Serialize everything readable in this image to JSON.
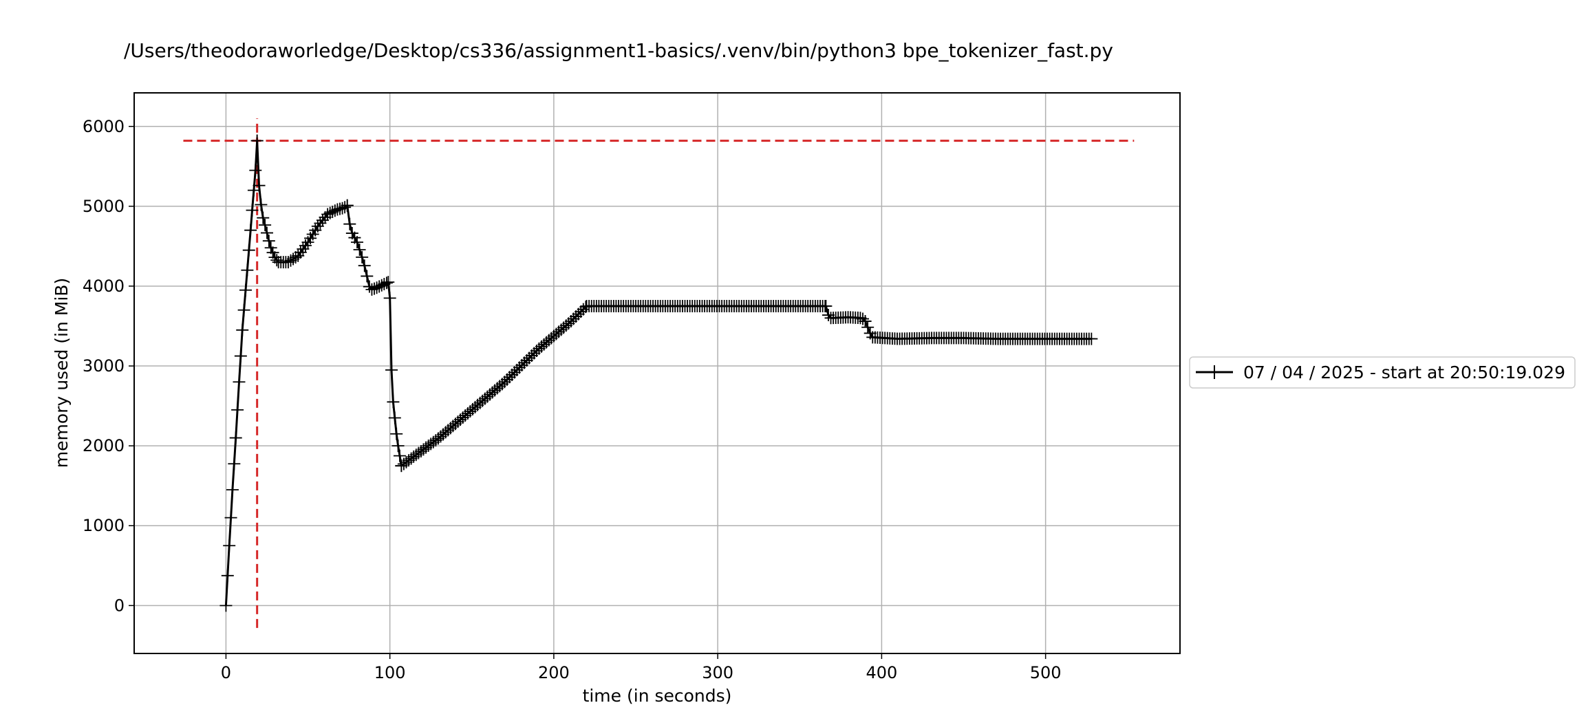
{
  "chart_data": {
    "type": "line",
    "title": "/Users/theodoraworledge/Desktop/cs336/assignment1-basics/.venv/bin/python3 bpe_tokenizer_fast.py",
    "xlabel": "time (in seconds)",
    "ylabel": "memory used (in MiB)",
    "xlim": [
      -56,
      582
    ],
    "ylim": [
      -600,
      6420
    ],
    "xticks": [
      0,
      100,
      200,
      300,
      400,
      500
    ],
    "yticks": [
      0,
      1000,
      2000,
      3000,
      4000,
      5000,
      6000
    ],
    "grid": true,
    "legend_position": "right-outside",
    "colors": {
      "series": "#000000",
      "peak": "#d62728",
      "grid": "#b0b0b0"
    },
    "peak": {
      "time": 19,
      "memory": 5820,
      "y_span": [
        -280,
        6100
      ],
      "x_span": [
        -26,
        554
      ]
    },
    "series": [
      {
        "name": "07 / 04 / 2025 - start at 20:50:19.029",
        "segments": [
          {
            "from": [
              0,
              0
            ],
            "to": [
              19,
              5820
            ],
            "step": 1,
            "points": [
              [
                0,
                0
              ],
              [
                2,
                750
              ],
              [
                4,
                1450
              ],
              [
                6,
                2100
              ],
              [
                8,
                2800
              ],
              [
                10,
                3450
              ],
              [
                12,
                3950
              ],
              [
                14,
                4450
              ],
              [
                16,
                4950
              ],
              [
                18,
                5450
              ],
              [
                19,
                5820
              ]
            ]
          },
          {
            "from": [
              19,
              5820
            ],
            "to": [
              32,
              4300
            ],
            "step": 1.2,
            "points": [
              [
                19,
                5820
              ],
              [
                20,
                5300
              ],
              [
                22,
                4900
              ],
              [
                24,
                4750
              ],
              [
                27,
                4500
              ],
              [
                30,
                4350
              ],
              [
                32,
                4300
              ]
            ]
          },
          {
            "from": [
              32,
              4300
            ],
            "to": [
              74,
              5010
            ],
            "step": 1.5,
            "points": [
              [
                32,
                4300
              ],
              [
                38,
                4300
              ],
              [
                44,
                4380
              ],
              [
                50,
                4550
              ],
              [
                56,
                4750
              ],
              [
                62,
                4900
              ],
              [
                68,
                4960
              ],
              [
                72,
                4980
              ],
              [
                74,
                5010
              ]
            ]
          },
          {
            "from": [
              74,
              5010
            ],
            "to": [
              99,
              4050
            ],
            "step": 1.5,
            "points": [
              [
                74,
                5010
              ],
              [
                76,
                4700
              ],
              [
                80,
                4550
              ],
              [
                84,
                4300
              ],
              [
                88,
                3950
              ],
              [
                92,
                3980
              ],
              [
                96,
                4020
              ],
              [
                99,
                4050
              ]
            ]
          },
          {
            "from": [
              99,
              4050
            ],
            "to": [
              107,
              1750
            ],
            "step": 1,
            "points": [
              [
                99,
                4050
              ],
              [
                100,
                3850
              ],
              [
                101,
                2950
              ],
              [
                102,
                2550
              ],
              [
                104,
                2150
              ],
              [
                105,
                2000
              ],
              [
                107,
                1750
              ]
            ]
          },
          {
            "from": [
              107,
              1750
            ],
            "to": [
              220,
              3750
            ],
            "step": 1.5,
            "points": [
              [
                107,
                1750
              ],
              [
                130,
                2100
              ],
              [
                150,
                2450
              ],
              [
                170,
                2800
              ],
              [
                190,
                3200
              ],
              [
                210,
                3550
              ],
              [
                220,
                3750
              ]
            ]
          },
          {
            "from": [
              220,
              3750
            ],
            "to": [
              366,
              3750
            ],
            "step": 1.5,
            "points": [
              [
                220,
                3750
              ],
              [
                260,
                3750
              ],
              [
                300,
                3750
              ],
              [
                340,
                3750
              ],
              [
                366,
                3750
              ]
            ]
          },
          {
            "from": [
              366,
              3750
            ],
            "to": [
              390,
              3560
            ],
            "step": 1.5,
            "points": [
              [
                366,
                3750
              ],
              [
                368,
                3600
              ],
              [
                380,
                3610
              ],
              [
                388,
                3600
              ],
              [
                390,
                3560
              ]
            ]
          },
          {
            "from": [
              390,
              3560
            ],
            "to": [
              528,
              3340
            ],
            "step": 1.5,
            "points": [
              [
                390,
                3560
              ],
              [
                394,
                3360
              ],
              [
                410,
                3340
              ],
              [
                430,
                3350
              ],
              [
                450,
                3350
              ],
              [
                470,
                3340
              ],
              [
                500,
                3340
              ],
              [
                528,
                3340
              ]
            ]
          }
        ]
      }
    ]
  }
}
